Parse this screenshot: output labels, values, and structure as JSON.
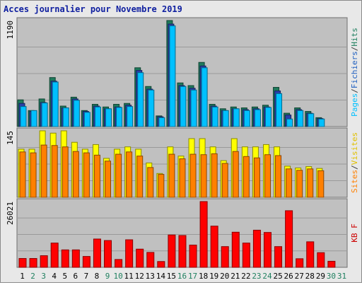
{
  "chart_data": {
    "title": "Acces journalier pour Novembre 2019",
    "days": [
      "1",
      "2",
      "3",
      "4",
      "5",
      "6",
      "7",
      "8",
      "9",
      "10",
      "11",
      "12",
      "13",
      "14",
      "15",
      "16",
      "17",
      "18",
      "19",
      "20",
      "21",
      "22",
      "23",
      "24",
      "25",
      "26",
      "27",
      "28",
      "29",
      "30",
      "31"
    ],
    "weekend_days": [
      "2",
      "3",
      "9",
      "10",
      "16",
      "17",
      "23",
      "24",
      "30",
      "31"
    ],
    "panels": [
      {
        "type": "bar",
        "ymax_label": "1190",
        "ylim": [
          0,
          1190
        ],
        "legend": [
          {
            "label": "Pages",
            "color": "#00c0ff"
          },
          {
            "label": "/",
            "color": "#3a3a3a"
          },
          {
            "label": "Fichiers",
            "color": "#2060c0"
          },
          {
            "label": "/",
            "color": "#3a3a3a"
          },
          {
            "label": "Hits",
            "color": "#208060"
          }
        ],
        "series": [
          {
            "name": "Hits",
            "color": "#1f7a5c",
            "values": [
              300,
              180,
              310,
              550,
              230,
              330,
              180,
              250,
              220,
              250,
              260,
              660,
              450,
              120,
              1190,
              490,
              460,
              720,
              250,
              200,
              220,
              210,
              220,
              240,
              440,
              150,
              210,
              170,
              100,
              null,
              null
            ]
          },
          {
            "name": "Fichiers",
            "color": "#2a3fa8",
            "values": [
              260,
              170,
              270,
              510,
              210,
              310,
              170,
              230,
              200,
              220,
              240,
              630,
              420,
              110,
              1150,
              460,
              430,
              680,
              230,
              180,
              200,
              190,
              200,
              220,
              400,
              130,
              190,
              150,
              90,
              null,
              null
            ]
          },
          {
            "name": "Pages",
            "color": "#00c0ff",
            "values": [
              225,
              180,
              265,
              500,
              210,
              295,
              160,
              220,
              200,
              215,
              225,
              605,
              410,
              100,
              1130,
              450,
              410,
              660,
              220,
              180,
              200,
              180,
              190,
              215,
              370,
              85,
              180,
              145,
              85,
              null,
              null
            ]
          }
        ]
      },
      {
        "type": "bar",
        "ymax_label": "145",
        "ylim": [
          0,
          145
        ],
        "legend": [
          {
            "label": "Sites",
            "color": "#ff8000"
          },
          {
            "label": "/",
            "color": "#3a3a3a"
          },
          {
            "label": "Visites",
            "color": "#e0c000"
          }
        ],
        "series": [
          {
            "name": "Visites",
            "color": "#ffff00",
            "values": [
              105,
              105,
              145,
              140,
              145,
              120,
              105,
              115,
              85,
              105,
              110,
              105,
              75,
              52,
              110,
              90,
              128,
              128,
              110,
              80,
              128,
              110,
              110,
              115,
              110,
              68,
              64,
              67,
              63,
              null,
              null
            ]
          },
          {
            "name": "Sites",
            "color": "#ff8000",
            "values": [
              99,
              97,
              114,
              113,
              110,
              100,
              97,
              92,
              79,
              94,
              99,
              90,
              65,
              50,
              94,
              84,
              94,
              93,
              95,
              74,
              100,
              89,
              86,
              93,
              91,
              62,
              59,
              62,
              58,
              null,
              null
            ]
          }
        ]
      },
      {
        "type": "bar",
        "ymax_label": "26021",
        "ylim": [
          0,
          26021
        ],
        "legend": [
          {
            "label": "KB F",
            "color": "#cc0000"
          }
        ],
        "series": [
          {
            "name": "KB F",
            "color": "#ff0000",
            "values": [
              3500,
              3500,
              4600,
              9600,
              6900,
              6900,
              4300,
              11200,
              10600,
              3100,
              10900,
              7200,
              5900,
              2300,
              12800,
              12600,
              8800,
              26021,
              16300,
              8200,
              13900,
              9600,
              14700,
              13800,
              8200,
              22400,
              3400,
              10100,
              5800,
              2400,
              null
            ]
          }
        ]
      }
    ]
  }
}
